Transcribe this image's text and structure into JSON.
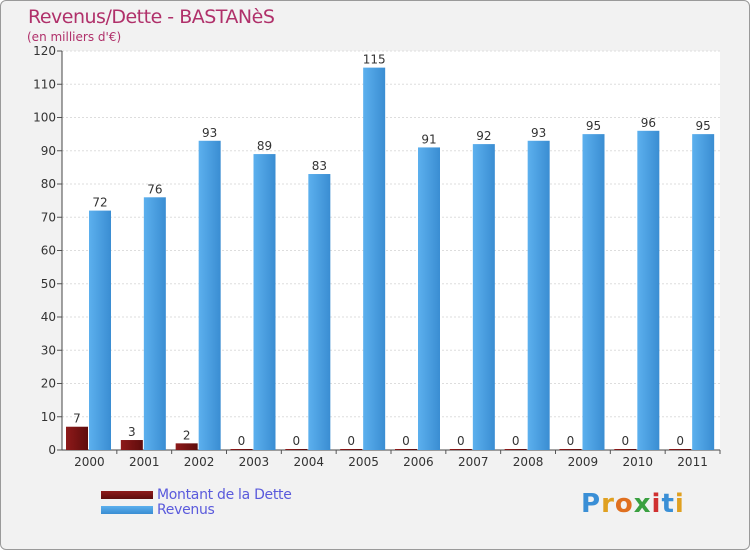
{
  "chart_data": {
    "type": "bar",
    "title": "Revenus/Dette - BASTANèS",
    "subtitle": "(en milliers d'€)",
    "xlabel": "",
    "ylabel": "",
    "ylim": [
      0,
      120
    ],
    "yticks": [
      "0",
      "10",
      "20",
      "30",
      "40",
      "50",
      "60",
      "70",
      "80",
      "90",
      "100",
      "110",
      "120"
    ],
    "categories": [
      "2000",
      "2001",
      "2002",
      "2003",
      "2004",
      "2005",
      "2006",
      "2007",
      "2008",
      "2009",
      "2010",
      "2011"
    ],
    "series": [
      {
        "name": "Montant de la Dette",
        "color": "#7a1414",
        "values": [
          7,
          3,
          2,
          0,
          0,
          0,
          0,
          0,
          0,
          0,
          0,
          0
        ],
        "labels": [
          "7",
          "3",
          "2",
          "0",
          "0",
          "0",
          "0",
          "0",
          "0",
          "0",
          "0",
          "0"
        ]
      },
      {
        "name": "Revenus",
        "color": "#4a9fe0",
        "values": [
          72,
          76,
          93,
          89,
          83,
          115,
          91,
          92,
          93,
          95,
          96,
          95
        ],
        "labels": [
          "72",
          "76",
          "93",
          "89",
          "83",
          "115",
          "91",
          "92",
          "93",
          "95",
          "96",
          "95"
        ]
      }
    ],
    "grid": true,
    "legend": "bottom-left"
  },
  "branding": {
    "logo_letters": [
      "P",
      "r",
      "o",
      "x",
      "i",
      "t",
      "i"
    ],
    "logo_colors": [
      "#3a8fd6",
      "#e0a020",
      "#e07020",
      "#3aa040",
      "#d03030",
      "#3a8fd6",
      "#e0a020"
    ]
  }
}
